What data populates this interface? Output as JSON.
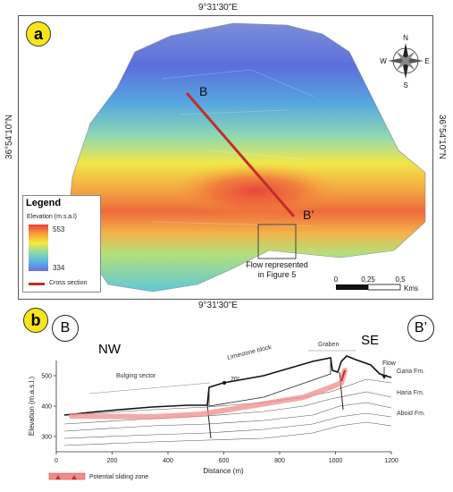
{
  "coords": {
    "top": "9°31'30\"E",
    "bottom": "9°31'30\"E",
    "left": "36°54'10\"N",
    "right": "36°54'10\"N"
  },
  "panel_a": {
    "label": "a",
    "point_b": "B",
    "point_b_prime": "B’",
    "inset_caption_line1": "Flow represented",
    "inset_caption_line2": "in Figure 5",
    "compass": {
      "n": "N",
      "s": "S",
      "e": "E",
      "w": "W"
    },
    "legend": {
      "title": "Legend",
      "subtitle": "Elevation (m.s.a.l)",
      "max": "553",
      "min": "334",
      "cross_section": "Cross section",
      "gradient_colors": [
        "#ee3b3b",
        "#f7a13a",
        "#f4ea3c",
        "#8ed9a6",
        "#5ab4e4",
        "#6a6fe0"
      ],
      "cross_section_color": "#c42c2c"
    },
    "scale": {
      "t0": "0",
      "t1": "0,25",
      "t2": "0,5",
      "unit": "Kms"
    }
  },
  "panel_b": {
    "label": "b",
    "point_b": "B",
    "point_b_prime": "B’",
    "nw": "NW",
    "se": "SE",
    "y_axis_label": "Elevation (m.a.s.l.)",
    "x_axis_label": "Distance (m)",
    "y_ticks": [
      "300",
      "400",
      "500"
    ],
    "x_ticks": [
      "0",
      "200",
      "400",
      "600",
      "800",
      "1000",
      "1200"
    ],
    "annotations": {
      "graben": "Graben",
      "limestone_block": "Limestone block",
      "bulging_sector": "Bulging sector",
      "dip": "20°",
      "flow": "Flow"
    },
    "formations": [
      "Garia Fm.",
      "Haria Fm.",
      "Aboid Fm."
    ],
    "legend_label": "Potential sliding zone",
    "sliding_zone_color": "#f08c8c"
  }
}
